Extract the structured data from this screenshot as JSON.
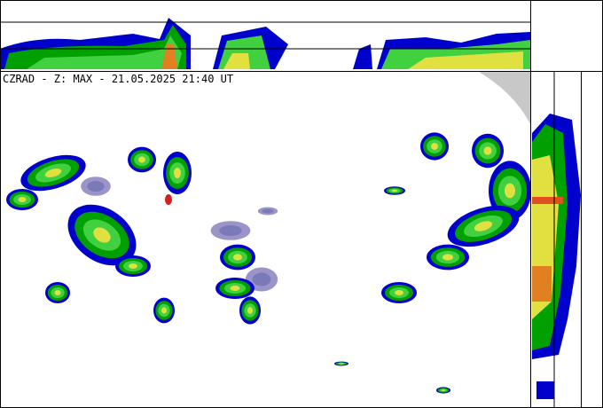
{
  "header": {
    "title": "CZRAD - Z: MAX - 21.05.2025 21:40 UT"
  }
}
